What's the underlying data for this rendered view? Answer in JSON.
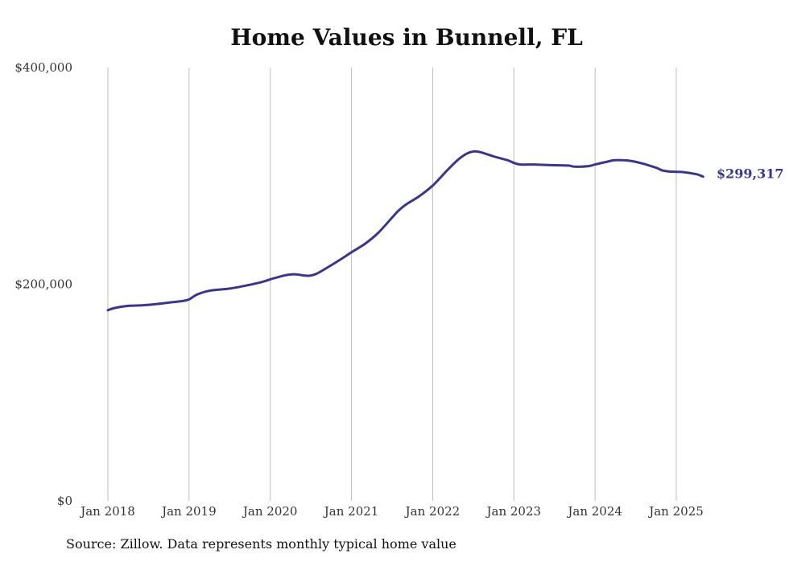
{
  "chart_data": {
    "type": "line",
    "title": "Home Values in Bunnell, FL",
    "xlabel": "",
    "ylabel": "",
    "ylim": [
      0,
      400000
    ],
    "y_ticks": [
      {
        "value": 0,
        "label": "$0"
      },
      {
        "value": 200000,
        "label": "$200,000"
      },
      {
        "value": 400000,
        "label": "$400,000"
      }
    ],
    "x_ticks": [
      {
        "value": 2018.0,
        "label": "Jan 2018"
      },
      {
        "value": 2019.0,
        "label": "Jan 2019"
      },
      {
        "value": 2020.0,
        "label": "Jan 2020"
      },
      {
        "value": 2021.0,
        "label": "Jan 2021"
      },
      {
        "value": 2022.0,
        "label": "Jan 2022"
      },
      {
        "value": 2023.0,
        "label": "Jan 2023"
      },
      {
        "value": 2024.0,
        "label": "Jan 2024"
      },
      {
        "value": 2025.0,
        "label": "Jan 2025"
      }
    ],
    "grid": "vertical",
    "color": "#3a3591",
    "series": [
      {
        "points": [
          [
            2018.0,
            176000
          ],
          [
            2018.08,
            178000
          ],
          [
            2018.25,
            180000
          ],
          [
            2018.42,
            180500
          ],
          [
            2018.58,
            181500
          ],
          [
            2018.75,
            183000
          ],
          [
            2018.92,
            184500
          ],
          [
            2019.0,
            186000
          ],
          [
            2019.1,
            190500
          ],
          [
            2019.25,
            194000
          ],
          [
            2019.5,
            196000
          ],
          [
            2019.75,
            199500
          ],
          [
            2019.92,
            202500
          ],
          [
            2020.0,
            204500
          ],
          [
            2020.17,
            208000
          ],
          [
            2020.25,
            209000
          ],
          [
            2020.33,
            209000
          ],
          [
            2020.42,
            208000
          ],
          [
            2020.5,
            208000
          ],
          [
            2020.58,
            210000
          ],
          [
            2020.75,
            217500
          ],
          [
            2020.92,
            225500
          ],
          [
            2021.0,
            229500
          ],
          [
            2021.17,
            237500
          ],
          [
            2021.33,
            247500
          ],
          [
            2021.5,
            261500
          ],
          [
            2021.58,
            268000
          ],
          [
            2021.67,
            273500
          ],
          [
            2021.83,
            281000
          ],
          [
            2022.0,
            291000
          ],
          [
            2022.17,
            304500
          ],
          [
            2022.25,
            310500
          ],
          [
            2022.33,
            316000
          ],
          [
            2022.42,
            320500
          ],
          [
            2022.5,
            322500
          ],
          [
            2022.58,
            322000
          ],
          [
            2022.75,
            318000
          ],
          [
            2022.92,
            314500
          ],
          [
            2023.0,
            312000
          ],
          [
            2023.08,
            310500
          ],
          [
            2023.25,
            310500
          ],
          [
            2023.42,
            310000
          ],
          [
            2023.67,
            309500
          ],
          [
            2023.75,
            308500
          ],
          [
            2023.92,
            309000
          ],
          [
            2024.0,
            310500
          ],
          [
            2024.17,
            313500
          ],
          [
            2024.25,
            314500
          ],
          [
            2024.42,
            314000
          ],
          [
            2024.58,
            311500
          ],
          [
            2024.75,
            307500
          ],
          [
            2024.83,
            305000
          ],
          [
            2024.92,
            304000
          ],
          [
            2025.08,
            303500
          ],
          [
            2025.25,
            301500
          ],
          [
            2025.33,
            299317
          ]
        ],
        "end_value": 299317,
        "end_label": "$299,317"
      }
    ]
  },
  "footer": {
    "source": "Source: Zillow. Data represents monthly typical home value"
  }
}
